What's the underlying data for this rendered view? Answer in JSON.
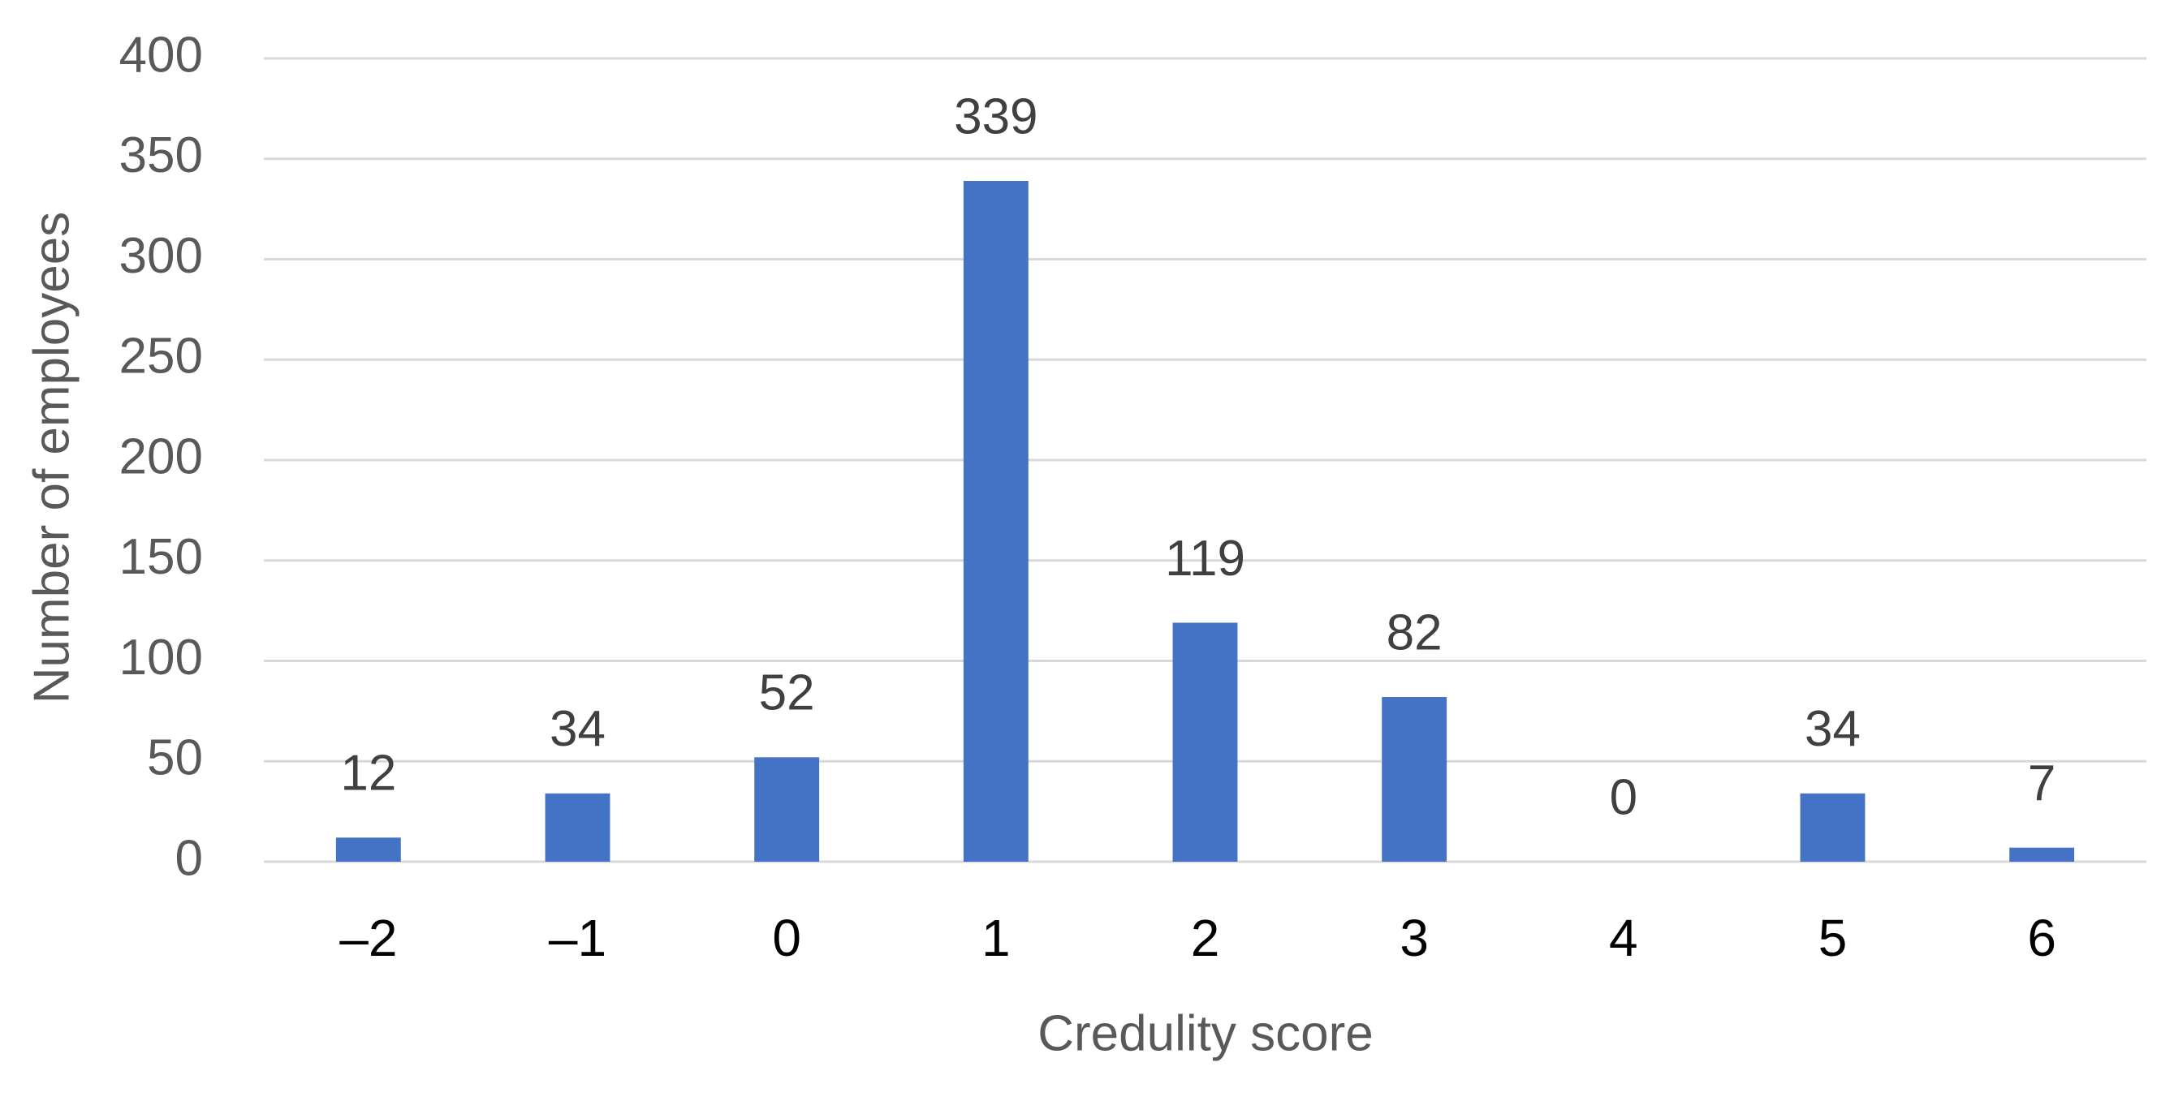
{
  "chart_data": {
    "type": "bar",
    "x_label": "Credulity score",
    "y_label": "Number of employees",
    "categories": [
      "–2",
      "–1",
      "0",
      "1",
      "2",
      "3",
      "4",
      "5",
      "6"
    ],
    "values": [
      12,
      34,
      52,
      339,
      119,
      82,
      0,
      34,
      7
    ],
    "color": "#4472c4",
    "ylim": [
      0,
      400
    ],
    "yticks": [
      0,
      50,
      100,
      150,
      200,
      250,
      300,
      350,
      400
    ],
    "grid": true
  }
}
